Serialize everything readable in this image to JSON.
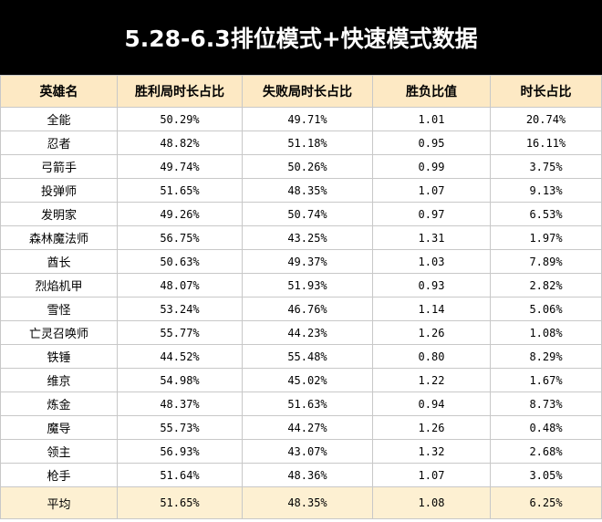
{
  "title": "5.28-6.3排位模式+快速模式数据",
  "table": {
    "header": [
      "英雄名",
      "胜利局时长占比",
      "失败局时长占比",
      "胜负比值",
      "时长占比"
    ],
    "rows": [
      [
        "全能",
        "50.29%",
        "49.71%",
        "1.01",
        "20.74%"
      ],
      [
        "忍者",
        "48.82%",
        "51.18%",
        "0.95",
        "16.11%"
      ],
      [
        "弓箭手",
        "49.74%",
        "50.26%",
        "0.99",
        "3.75%"
      ],
      [
        "投弹师",
        "51.65%",
        "48.35%",
        "1.07",
        "9.13%"
      ],
      [
        "发明家",
        "49.26%",
        "50.74%",
        "0.97",
        "6.53%"
      ],
      [
        "森林魔法师",
        "56.75%",
        "43.25%",
        "1.31",
        "1.97%"
      ],
      [
        "酋长",
        "50.63%",
        "49.37%",
        "1.03",
        "7.89%"
      ],
      [
        "烈焰机甲",
        "48.07%",
        "51.93%",
        "0.93",
        "2.82%"
      ],
      [
        "雪怪",
        "53.24%",
        "46.76%",
        "1.14",
        "5.06%"
      ],
      [
        "亡灵召唤师",
        "55.77%",
        "44.23%",
        "1.26",
        "1.08%"
      ],
      [
        "铁锤",
        "44.52%",
        "55.48%",
        "0.80",
        "8.29%"
      ],
      [
        "维京",
        "54.98%",
        "45.02%",
        "1.22",
        "1.67%"
      ],
      [
        "炼金",
        "48.37%",
        "51.63%",
        "0.94",
        "8.73%"
      ],
      [
        "魔导",
        "55.73%",
        "44.27%",
        "1.26",
        "0.48%"
      ],
      [
        "领主",
        "56.93%",
        "43.07%",
        "1.32",
        "2.68%"
      ],
      [
        "枪手",
        "51.64%",
        "48.36%",
        "1.07",
        "3.05%"
      ]
    ],
    "footer": [
      "平均",
      "51.65%",
      "48.35%",
      "1.08",
      "6.25%"
    ]
  }
}
